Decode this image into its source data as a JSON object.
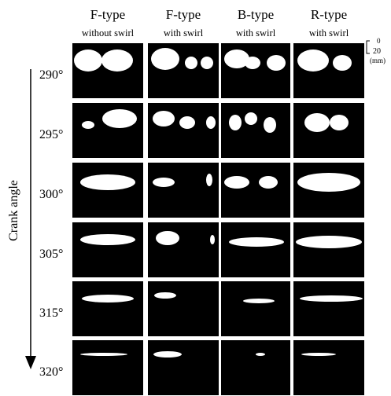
{
  "header": {
    "columns": [
      {
        "title": "F-type",
        "subtitle": "without swirl"
      },
      {
        "title": "F-type",
        "subtitle": "with swirl"
      },
      {
        "title": "B-type",
        "subtitle": "with swirl"
      },
      {
        "title": "R-type",
        "subtitle": "with swirl"
      }
    ]
  },
  "rows": [
    "290°",
    "295°",
    "300°",
    "305°",
    "315°",
    "320°"
  ],
  "axis_label": "Crank angle",
  "scale": {
    "labels": [
      "0",
      "20"
    ],
    "unit": "(mm)"
  }
}
